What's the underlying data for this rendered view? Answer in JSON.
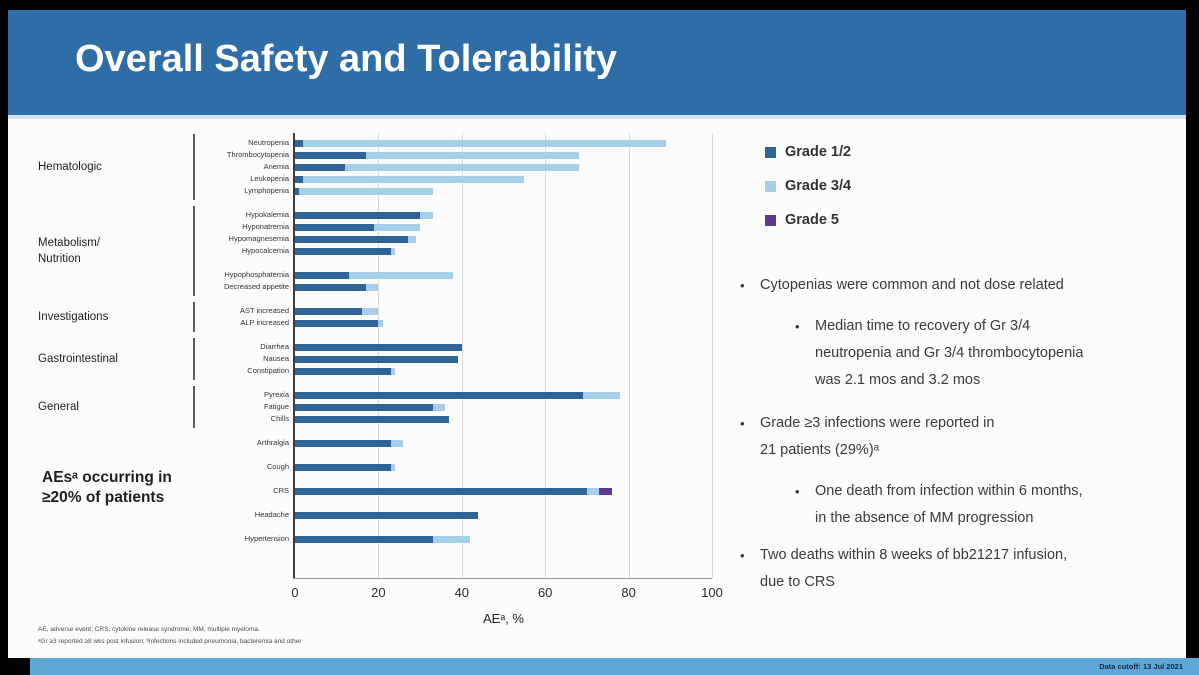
{
  "title": "Overall Safety and Tolerability",
  "colors": {
    "banner": "#2f6da6",
    "footer_strip": "#5fa7d7",
    "grade12": "#2f6494",
    "grade34": "#a7cee8",
    "grade5": "#5b3b8f"
  },
  "bullets": [
    {
      "level": 1,
      "text": "Cytopenias were common and not dose related"
    },
    {
      "level": 2,
      "text": "Median time to recovery of Gr 3/4\nneutropenia and Gr 3/4 thrombocytopenia\nwas 2.1 mos and 3.2 mos"
    },
    {
      "level": 1,
      "text": "Grade ≥3 infections were reported in\n21 patients (29%)ᵃ"
    },
    {
      "level": 2,
      "text": "One death from infection within 6 months,\nin the absence of MM progression"
    },
    {
      "level": 1,
      "text": "Two deaths within 8 weeks of bb21217 infusion,\ndue to CRS"
    }
  ],
  "footnotes": [
    "AE, adverse event; CRS, cytokine release syndrome; MM, multiple myeloma.",
    "ᵃGr ≥3 reported ≥8 wks post infusion; ᵇinfections included pneumonia, bacteremia and other"
  ],
  "footer": {
    "right": "Data cutoff: 13 Jul 2021"
  },
  "chart_data": {
    "type": "bar",
    "orientation": "horizontal",
    "stacked": true,
    "note": "AEsᵃ occurring in\n≥20% of patients",
    "xlabel": "AEᵃ, %",
    "xlim": [
      0,
      100
    ],
    "xticks": [
      0,
      20,
      40,
      60,
      80,
      100
    ],
    "grid": "vertical",
    "legend_position": "top-right",
    "series": [
      {
        "name": "Grade 1/2",
        "color": "#2f6494"
      },
      {
        "name": "Grade 3/4",
        "color": "#a7cee8"
      },
      {
        "name": "Grade 5",
        "color": "#5b3b8f"
      }
    ],
    "value_key": "values = [Grade 1/2 %, Grade 3/4 %, Grade 5 %]",
    "blocks": [
      {
        "rows": [
          {
            "label": "Neutropenia",
            "values": [
              2,
              87,
              0
            ]
          },
          {
            "label": "Thrombocytopenia",
            "values": [
              17,
              51,
              0
            ]
          },
          {
            "label": "Anemia",
            "values": [
              12,
              56,
              0
            ]
          },
          {
            "label": "Leukopenia",
            "values": [
              2,
              53,
              0
            ]
          },
          {
            "label": "Lymphopenia",
            "values": [
              1,
              32,
              0
            ]
          }
        ]
      },
      {
        "rows": [
          {
            "label": "Hypokalemia",
            "values": [
              30,
              3,
              0
            ]
          },
          {
            "label": "Hyponatremia",
            "values": [
              19,
              11,
              0
            ]
          },
          {
            "label": "Hypomagnesemia",
            "values": [
              27,
              2,
              0
            ]
          },
          {
            "label": "Hypocalcemia",
            "values": [
              23,
              1,
              0
            ]
          }
        ]
      },
      {
        "rows": [
          {
            "label": "Hypophosphatemia",
            "values": [
              13,
              25,
              0
            ]
          },
          {
            "label": "Decreased appetite",
            "values": [
              17,
              3,
              0
            ]
          }
        ]
      },
      {
        "rows": [
          {
            "label": "AST increased",
            "values": [
              16,
              4,
              0
            ]
          },
          {
            "label": "ALP increased",
            "values": [
              20,
              1,
              0
            ]
          }
        ]
      },
      {
        "rows": [
          {
            "label": "Diarrhea",
            "values": [
              40,
              0,
              0
            ]
          },
          {
            "label": "Nausea",
            "values": [
              39,
              0,
              0
            ]
          },
          {
            "label": "Constipation",
            "values": [
              23,
              1,
              0
            ]
          }
        ]
      },
      {
        "rows": [
          {
            "label": "Pyrexia",
            "values": [
              69,
              9,
              0
            ]
          },
          {
            "label": "Fatigue",
            "values": [
              33,
              3,
              0
            ]
          },
          {
            "label": "Chills",
            "values": [
              37,
              0,
              0
            ]
          }
        ]
      },
      {
        "rows": [
          {
            "label": "Arthralgia",
            "values": [
              23,
              3,
              0
            ]
          }
        ]
      },
      {
        "rows": [
          {
            "label": "Cough",
            "values": [
              23,
              1,
              0
            ]
          }
        ]
      },
      {
        "rows": [
          {
            "label": "CRS",
            "values": [
              70,
              3,
              3
            ]
          }
        ]
      },
      {
        "rows": [
          {
            "label": "Headache",
            "values": [
              44,
              0,
              0
            ]
          }
        ]
      },
      {
        "rows": [
          {
            "label": "Hypertension",
            "values": [
              33,
              9,
              0
            ]
          }
        ]
      }
    ],
    "categories": [
      {
        "label": "Hematologic",
        "from_block": 0,
        "to_block": 0
      },
      {
        "label": "Metabolism/\nNutrition",
        "from_block": 1,
        "to_block": 2
      },
      {
        "label": "Investigations",
        "from_block": 3,
        "to_block": 3
      },
      {
        "label": "Gastrointestinal",
        "from_block": 4,
        "to_block": 4
      },
      {
        "label": "General",
        "from_block": 5,
        "to_block": 5
      }
    ]
  }
}
